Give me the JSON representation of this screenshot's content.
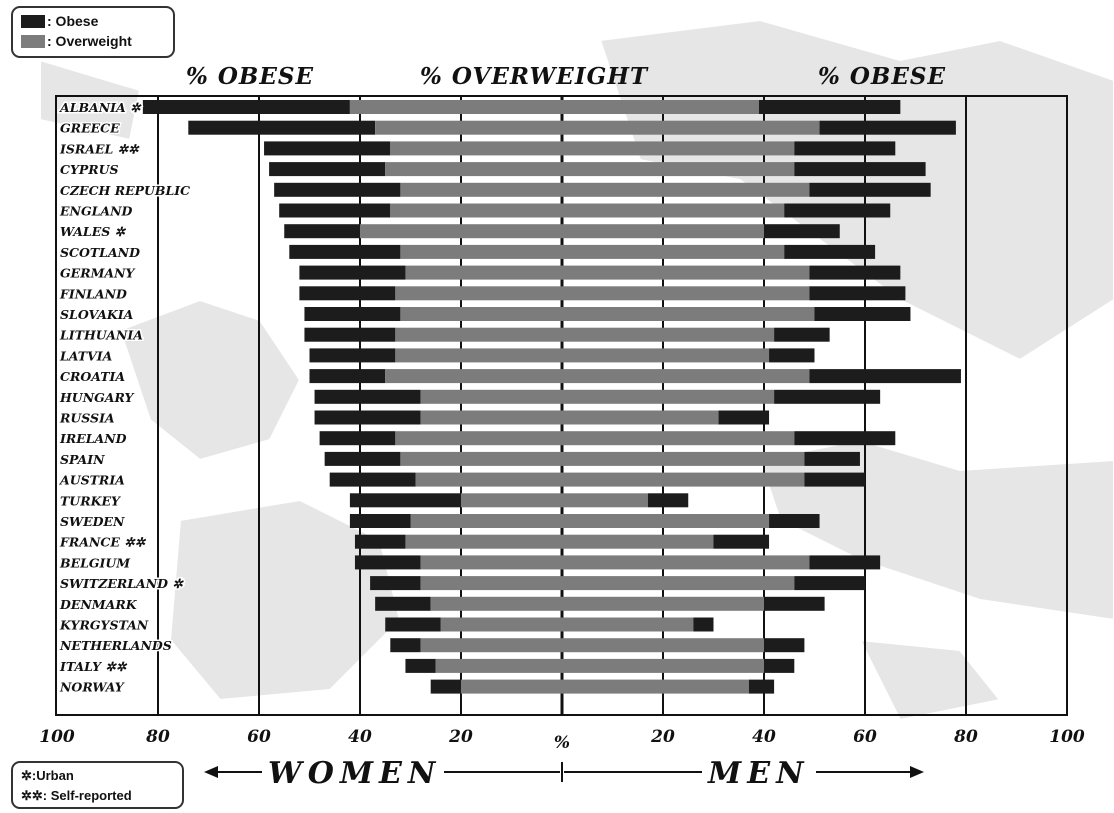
{
  "legend": {
    "obese_label": ": Obese",
    "overweight_label": ": Overweight"
  },
  "header": {
    "left_obese": "% OBESE",
    "center_overweight": "% OVERWEIGHT",
    "right_obese": "% OBESE"
  },
  "notes": {
    "urban": ":Urban",
    "self_reported": ": Self-reported",
    "urban_symbol": "✲",
    "self_symbol": "✲✲"
  },
  "footer": {
    "women": "WOMEN",
    "men": "MEN",
    "center_percent": "%"
  },
  "colors": {
    "obese": "#1c1c1c",
    "overweight": "#7c7c7c",
    "map_land": "#e6e6e6",
    "background": "#ffffff"
  },
  "chart_data": {
    "type": "bar",
    "orientation": "horizontal",
    "layout": "diverging",
    "x_axis": {
      "left_ticks": [
        100,
        80,
        60,
        40,
        20
      ],
      "center_label": "%",
      "right_ticks": [
        20,
        40,
        60,
        80,
        100
      ],
      "range": [
        -100,
        100
      ]
    },
    "legend_placement": "top-left",
    "grid": true,
    "countries": [
      {
        "name": "ALBANIA ✲",
        "women": {
          "overweight": 83,
          "obese": 42
        },
        "men": {
          "overweight": 67,
          "obese": 39
        }
      },
      {
        "name": "GREECE",
        "women": {
          "overweight": 74,
          "obese": 37
        },
        "men": {
          "overweight": 78,
          "obese": 51
        }
      },
      {
        "name": "ISRAEL ✲✲",
        "women": {
          "overweight": 59,
          "obese": 34
        },
        "men": {
          "overweight": 66,
          "obese": 46
        }
      },
      {
        "name": "CYPRUS",
        "women": {
          "overweight": 58,
          "obese": 35
        },
        "men": {
          "overweight": 72,
          "obese": 46
        }
      },
      {
        "name": "CZECH REPUBLIC",
        "women": {
          "overweight": 57,
          "obese": 32
        },
        "men": {
          "overweight": 73,
          "obese": 49
        }
      },
      {
        "name": "ENGLAND",
        "women": {
          "overweight": 56,
          "obese": 34
        },
        "men": {
          "overweight": 65,
          "obese": 44
        }
      },
      {
        "name": "WALES ✲",
        "women": {
          "overweight": 55,
          "obese": 40
        },
        "men": {
          "overweight": 55,
          "obese": 40
        }
      },
      {
        "name": "SCOTLAND",
        "women": {
          "overweight": 54,
          "obese": 32
        },
        "men": {
          "overweight": 62,
          "obese": 44
        }
      },
      {
        "name": "GERMANY",
        "women": {
          "overweight": 52,
          "obese": 31
        },
        "men": {
          "overweight": 67,
          "obese": 49
        }
      },
      {
        "name": "FINLAND",
        "women": {
          "overweight": 52,
          "obese": 33
        },
        "men": {
          "overweight": 68,
          "obese": 49
        }
      },
      {
        "name": "SLOVAKIA",
        "women": {
          "overweight": 51,
          "obese": 32
        },
        "men": {
          "overweight": 69,
          "obese": 50
        }
      },
      {
        "name": "LITHUANIA",
        "women": {
          "overweight": 51,
          "obese": 33
        },
        "men": {
          "overweight": 53,
          "obese": 42
        }
      },
      {
        "name": "LATVIA",
        "women": {
          "overweight": 50,
          "obese": 33
        },
        "men": {
          "overweight": 50,
          "obese": 41
        }
      },
      {
        "name": "CROATIA",
        "women": {
          "overweight": 50,
          "obese": 35
        },
        "men": {
          "overweight": 79,
          "obese": 49
        }
      },
      {
        "name": "HUNGARY",
        "women": {
          "overweight": 49,
          "obese": 28
        },
        "men": {
          "overweight": 63,
          "obese": 42
        }
      },
      {
        "name": "RUSSIA",
        "women": {
          "overweight": 49,
          "obese": 28
        },
        "men": {
          "overweight": 41,
          "obese": 31
        }
      },
      {
        "name": "IRELAND",
        "women": {
          "overweight": 48,
          "obese": 33
        },
        "men": {
          "overweight": 66,
          "obese": 46
        }
      },
      {
        "name": "SPAIN",
        "women": {
          "overweight": 47,
          "obese": 32
        },
        "men": {
          "overweight": 59,
          "obese": 48
        }
      },
      {
        "name": "AUSTRIA",
        "women": {
          "overweight": 46,
          "obese": 29
        },
        "men": {
          "overweight": 60,
          "obese": 48
        }
      },
      {
        "name": "TURKEY",
        "women": {
          "overweight": 42,
          "obese": 20
        },
        "men": {
          "overweight": 25,
          "obese": 17
        }
      },
      {
        "name": "SWEDEN",
        "women": {
          "overweight": 42,
          "obese": 30
        },
        "men": {
          "overweight": 51,
          "obese": 41
        }
      },
      {
        "name": "FRANCE ✲✲",
        "women": {
          "overweight": 41,
          "obese": 31
        },
        "men": {
          "overweight": 41,
          "obese": 30
        }
      },
      {
        "name": "BELGIUM",
        "women": {
          "overweight": 41,
          "obese": 28
        },
        "men": {
          "overweight": 63,
          "obese": 49
        }
      },
      {
        "name": "SWITZERLAND ✲",
        "women": {
          "overweight": 38,
          "obese": 28
        },
        "men": {
          "overweight": 60,
          "obese": 46
        }
      },
      {
        "name": "DENMARK",
        "women": {
          "overweight": 37,
          "obese": 26
        },
        "men": {
          "overweight": 52,
          "obese": 40
        }
      },
      {
        "name": "KYRGYSTAN",
        "women": {
          "overweight": 35,
          "obese": 24
        },
        "men": {
          "overweight": 30,
          "obese": 26
        }
      },
      {
        "name": "NETHERLANDS",
        "women": {
          "overweight": 34,
          "obese": 28
        },
        "men": {
          "overweight": 48,
          "obese": 40
        }
      },
      {
        "name": "ITALY ✲✲",
        "women": {
          "overweight": 31,
          "obese": 25
        },
        "men": {
          "overweight": 46,
          "obese": 40
        }
      },
      {
        "name": "NORWAY",
        "women": {
          "overweight": 26,
          "obese": 20
        },
        "men": {
          "overweight": 42,
          "obese": 37
        }
      }
    ]
  }
}
